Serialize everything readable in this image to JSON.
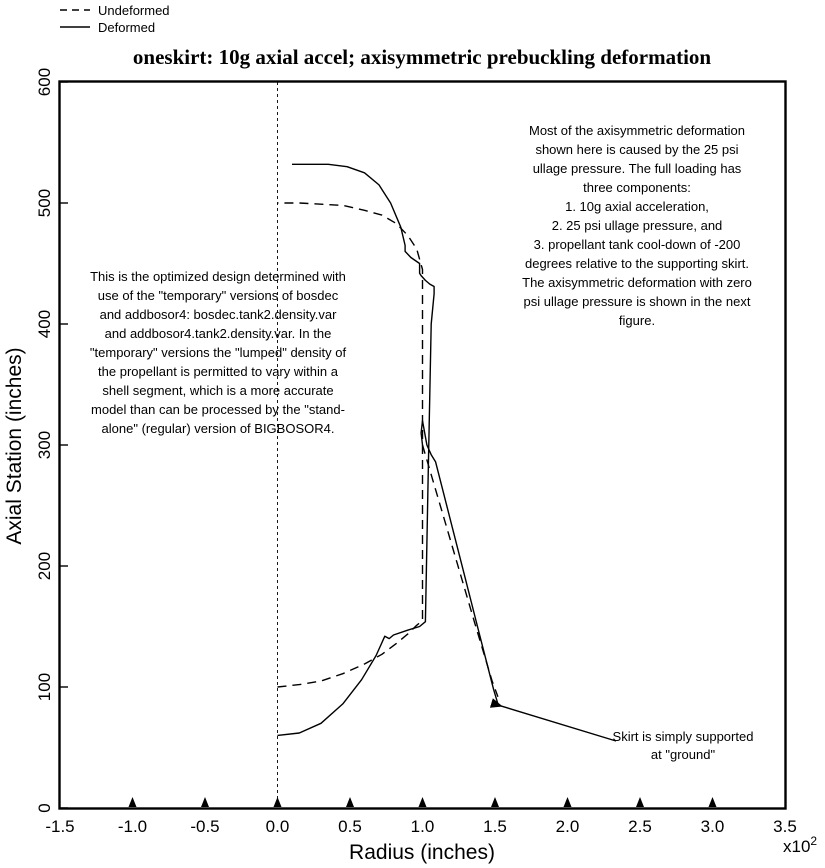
{
  "chart_data": {
    "type": "line",
    "title": "oneskirt: 10g axial accel; axisymmetric prebuckling deformation",
    "xlabel": "Radius (inches)",
    "ylabel": "Axial Station (inches)",
    "x_multiplier_label": "x10",
    "x_multiplier_exp": "2",
    "xlim": [
      -1.5,
      3.5
    ],
    "ylim": [
      0,
      600
    ],
    "x_ticks": [
      -1.5,
      -1.0,
      -0.5,
      0.0,
      0.5,
      1.0,
      1.5,
      2.0,
      2.5,
      3.0,
      3.5
    ],
    "x_tick_labels": [
      "-1.5",
      "-1.0",
      "-0.5",
      "0.0",
      "0.5",
      "1.0",
      "1.5",
      "2.0",
      "2.5",
      "3.0",
      "3.5"
    ],
    "y_ticks": [
      0,
      100,
      200,
      300,
      400,
      500,
      600
    ],
    "y_tick_labels": [
      "0",
      "100",
      "200",
      "300",
      "400",
      "500",
      "600"
    ],
    "grid": false,
    "legend_position": "top-left, outside plot",
    "support_markers_x": [
      -1.0,
      -0.5,
      0.0,
      0.5,
      1.0,
      1.5,
      2.0,
      2.5,
      3.0
    ],
    "series": [
      {
        "name": "Undeformed",
        "style": "dashed",
        "color": "#000000",
        "x": [
          0.0,
          0.15,
          0.3,
          0.45,
          0.6,
          0.72,
          0.82,
          0.9,
          0.96,
          1.0,
          1.0,
          1.0,
          0.96,
          0.9,
          0.82,
          0.72,
          0.6,
          0.45,
          0.3,
          0.15,
          0.0
        ],
        "y": [
          100,
          102,
          105,
          111,
          119,
          127,
          136,
          144,
          151,
          155,
          300,
          445,
          462,
          473,
          483,
          490,
          494,
          498,
          499,
          500,
          500
        ]
      },
      {
        "name": "Undeformed",
        "style": "dashed",
        "color": "#000000",
        "x": [
          1.0,
          1.12,
          1.24,
          1.36,
          1.48,
          1.52
        ],
        "y": [
          300,
          251,
          202,
          153,
          105,
          92
        ]
      },
      {
        "name": "Deformed",
        "style": "solid",
        "color": "#000000",
        "x": [
          0.0,
          0.15,
          0.3,
          0.45,
          0.58,
          0.68,
          0.74,
          0.77,
          0.8,
          0.9,
          0.98,
          1.02,
          1.04,
          1.06,
          1.08,
          1.08,
          1.05,
          1.02,
          0.99,
          0.98,
          0.98,
          0.92,
          0.88,
          0.88,
          0.85,
          0.78,
          0.7,
          0.6,
          0.48,
          0.35,
          0.22,
          0.1
        ],
        "y": [
          60,
          62,
          70,
          86,
          106,
          126,
          142,
          140,
          143,
          147,
          150,
          154,
          280,
          400,
          425,
          431,
          433,
          436,
          440,
          442,
          450,
          455,
          460,
          465,
          480,
          500,
          515,
          525,
          530,
          532,
          532,
          532
        ]
      },
      {
        "name": "Deformed",
        "style": "solid",
        "color": "#000000",
        "x": [
          1.0,
          0.99,
          1.0,
          1.03,
          1.06,
          1.09,
          1.19,
          1.29,
          1.39,
          1.49,
          1.52
        ],
        "y": [
          300,
          310,
          320,
          300,
          292,
          286,
          239,
          192,
          145,
          98,
          86
        ]
      }
    ],
    "annotations": [
      {
        "id": "left_note",
        "lines": [
          "This is the optimized design determined with",
          "use of the \"temporary\" versions of bosdec",
          "and addbosor4: bosdec.tank2.density.var",
          "and addbosor4.tank2.density.var. In the",
          "\"temporary\" versions the \"lumped\" density of",
          "the propellant is permitted to vary within a",
          "shell segment, which is a more accurate",
          "model than can be processed by the \"stand-",
          "alone\" (regular) version of BIGBOSOR4."
        ]
      },
      {
        "id": "right_note",
        "lines": [
          "Most of the axisymmetric deformation",
          "shown here is caused by the 25 psi",
          "ullage pressure. The full loading has",
          "three components:",
          "1.  10g axial acceleration,",
          "2.  25 psi ullage pressure, and",
          "3.  propellant tank cool-down of -200",
          "degrees relative to the supporting skirt.",
          "The axisymmetric deformation with zero",
          "psi ullage pressure is shown in the next",
          "figure."
        ]
      },
      {
        "id": "arrow_note",
        "lines": [
          "Skirt is simply supported",
          "at \"ground\""
        ],
        "points_to": [
          1.52,
          86
        ]
      }
    ]
  },
  "legend": {
    "undeformed_label": "Undeformed",
    "deformed_label": "Deformed"
  }
}
